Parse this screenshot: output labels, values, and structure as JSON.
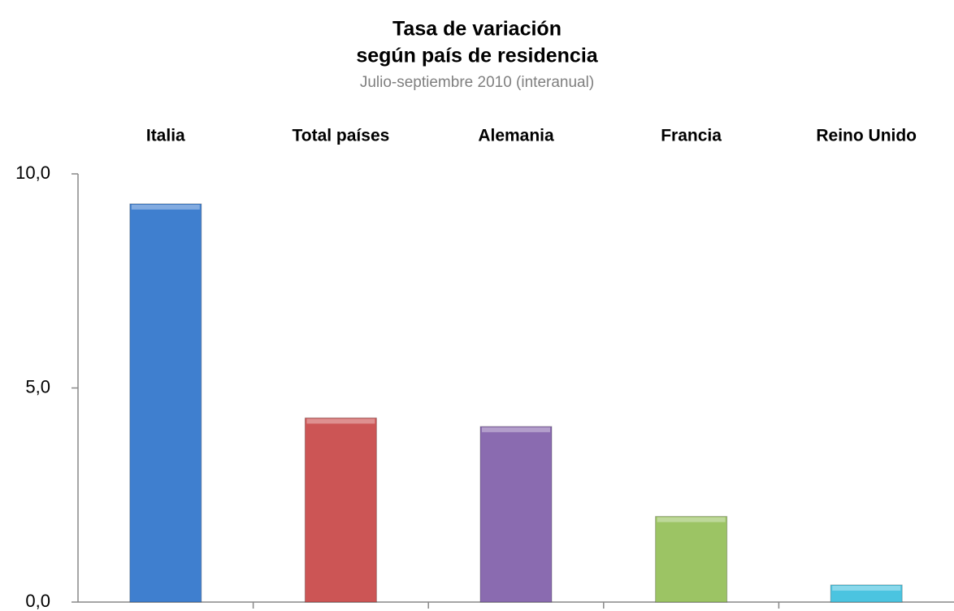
{
  "chart_data": {
    "type": "bar",
    "title": [
      "Tasa de variación",
      "según país de residencia"
    ],
    "subtitle": "Julio-septiembre 2010 (interanual)",
    "categories": [
      "Italia",
      "Total países",
      "Alemania",
      "Francia",
      "Reino Unido"
    ],
    "values": [
      9.3,
      4.3,
      4.1,
      2.0,
      0.4
    ],
    "colors": [
      "#3f7fcf",
      "#cc5555",
      "#8a6bb0",
      "#9cc464",
      "#4bc4e0"
    ],
    "ylim": [
      0,
      10
    ],
    "yticks": [
      {
        "value": 0,
        "label": "0,0"
      },
      {
        "value": 5,
        "label": "5,0"
      },
      {
        "value": 10,
        "label": "10,0"
      }
    ],
    "grid": false
  }
}
